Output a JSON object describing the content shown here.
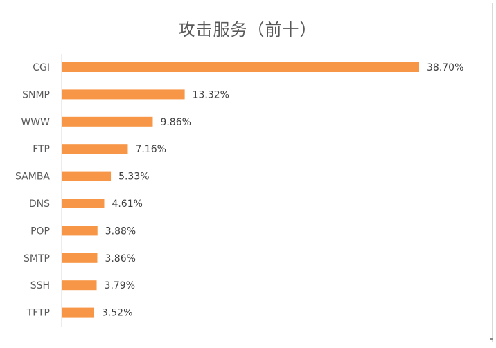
{
  "chart_data": {
    "type": "bar",
    "orientation": "horizontal",
    "title": "攻击服务（前十）",
    "categories": [
      "CGI",
      "SNMP",
      "WWW",
      "FTP",
      "SAMBA",
      "DNS",
      "POP",
      "SMTP",
      "SSH",
      "TFTP"
    ],
    "values": [
      38.7,
      13.32,
      9.86,
      7.16,
      5.33,
      4.61,
      3.88,
      3.86,
      3.79,
      3.52
    ],
    "value_labels": [
      "38.70%",
      "13.32%",
      "9.86%",
      "7.16%",
      "5.33%",
      "4.61%",
      "3.88%",
      "3.86%",
      "3.79%",
      "3.52%"
    ],
    "unit": "%",
    "xlim": [
      0,
      40
    ],
    "bar_color": "#F79646",
    "grid": false,
    "legend": "none"
  }
}
